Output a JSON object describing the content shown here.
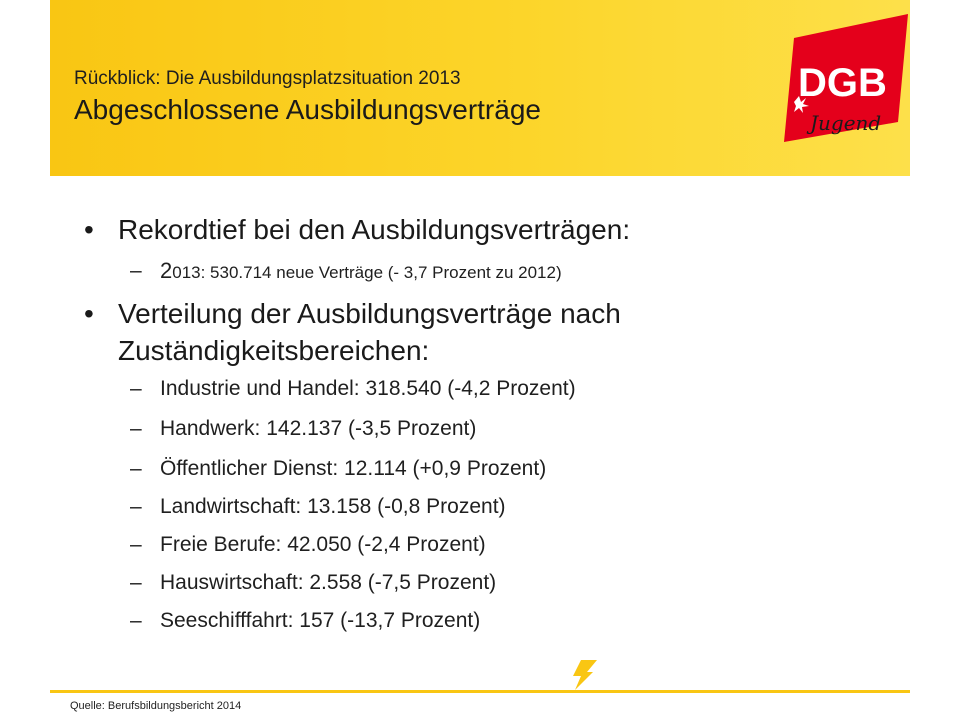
{
  "header": {
    "subtitle": "Rückblick: Die Ausbildungsplatzsituation  2013",
    "title": "Abgeschlossene Ausbildungsverträge",
    "logo_text": "DGB",
    "logo_subtext": "Jugend"
  },
  "colors": {
    "brand_yellow": "#f9c613",
    "logo_red": "#e4001b"
  },
  "body": {
    "bullet1": "Rekordtief bei den Ausbildungsverträgen:",
    "bullet1_sub_first": "2",
    "bullet1_sub_rest": "013: 530.714 neue Verträge (- 3,7 Prozent zu 2012)",
    "bullet2_line1": "Verteilung der Ausbildungsverträge nach",
    "bullet2_line2": "Zuständigkeitsbereichen:",
    "items": [
      "Industrie und Handel: 318.540 (-4,2 Prozent)",
      "Handwerk: 142.137 (-3,5 Prozent)",
      "Öffentlicher Dienst: 12.114 (+0,9 Prozent)",
      "Landwirtschaft: 13.158 (-0,8 Prozent)",
      "Freie Berufe: 42.050 (-2,4 Prozent)",
      "Hauswirtschaft: 2.558 (-7,5 Prozent)",
      "Seeschifffahrt: 157 (-13,7 Prozent)"
    ],
    "bullet_glyph": "•",
    "dash_glyph": "–"
  },
  "footer": {
    "source": "Quelle: Berufsbildungsbericht 2014"
  }
}
